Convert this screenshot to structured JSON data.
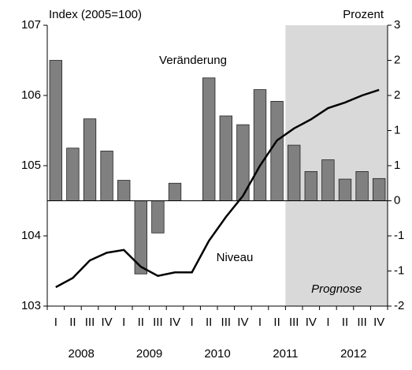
{
  "chart_data": {
    "type": "combo",
    "y_label": "Index (2005=100)",
    "y2_label": "Prozent",
    "categories": [
      "I",
      "II",
      "III",
      "IV",
      "I",
      "II",
      "III",
      "IV",
      "I",
      "II",
      "III",
      "IV",
      "I",
      "II",
      "III",
      "IV",
      "I",
      "II",
      "III",
      "IV"
    ],
    "years": [
      "2008",
      "2009",
      "2010",
      "2011",
      "2012"
    ],
    "series": [
      {
        "name": "Veränderung",
        "type": "bar",
        "axis": "y2",
        "color": "#808080",
        "values": [
          2.4,
          0.9,
          1.4,
          0.85,
          0.35,
          -1.25,
          -0.55,
          0.3,
          null,
          2.1,
          1.45,
          1.3,
          1.9,
          1.7,
          0.95,
          0.5,
          0.7,
          0.37,
          0.5,
          0.38
        ]
      },
      {
        "name": "Niveau",
        "type": "line",
        "axis": "y",
        "color": "#000000",
        "values": [
          103.27,
          103.4,
          103.65,
          103.76,
          103.8,
          103.56,
          103.43,
          103.48,
          103.48,
          103.93,
          104.27,
          104.57,
          105.0,
          105.36,
          105.53,
          105.66,
          105.82,
          105.9,
          106.0,
          106.08
        ]
      }
    ],
    "forecast": {
      "label": "Prognose",
      "start_index": 14,
      "color": "#d9d9d9"
    },
    "ylim": [
      103,
      107
    ],
    "yticks": [
      103,
      104,
      105,
      106,
      107
    ],
    "y2lim": [
      -1.8,
      3
    ],
    "y2ticks": [
      {
        "value": -1.8,
        "label": "-2"
      },
      {
        "value": -1.2,
        "label": "-1"
      },
      {
        "value": -0.6,
        "label": "-1"
      },
      0,
      {
        "value": 0.6,
        "label": "1"
      },
      {
        "value": 1.2,
        "label": "1"
      },
      {
        "value": 1.8,
        "label": "2"
      },
      {
        "value": 2.4,
        "label": "2"
      },
      3
    ]
  }
}
